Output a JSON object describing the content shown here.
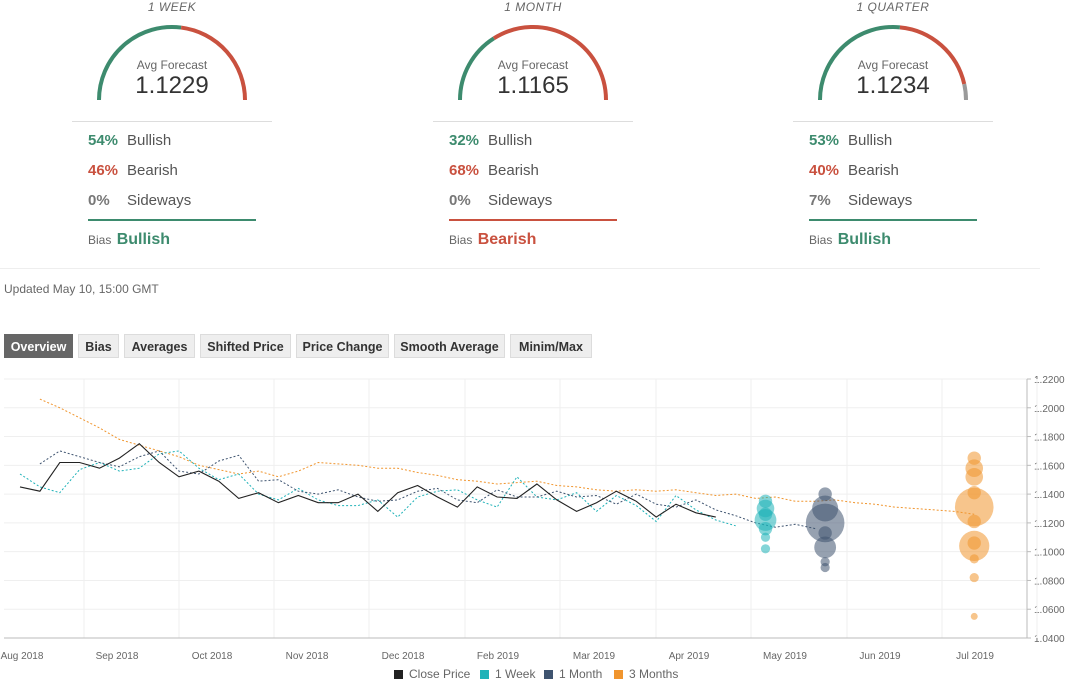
{
  "panels": [
    {
      "period": "1 WEEK",
      "avg_label": "Avg Forecast",
      "avg_value": "1.1229",
      "bullish_pct": "54%",
      "bullish_label": "Bullish",
      "bearish_pct": "46%",
      "bearish_label": "Bearish",
      "sideways_pct": "0%",
      "sideways_label": "Sideways",
      "bias_label": "Bias",
      "bias_value": "Bullish",
      "bullish": 54,
      "bearish": 46,
      "sideways": 0
    },
    {
      "period": "1 MONTH",
      "avg_label": "Avg Forecast",
      "avg_value": "1.1165",
      "bullish_pct": "32%",
      "bullish_label": "Bullish",
      "bearish_pct": "68%",
      "bearish_label": "Bearish",
      "sideways_pct": "0%",
      "sideways_label": "Sideways",
      "bias_label": "Bias",
      "bias_value": "Bearish",
      "bullish": 32,
      "bearish": 68,
      "sideways": 0
    },
    {
      "period": "1 QUARTER",
      "avg_label": "Avg Forecast",
      "avg_value": "1.1234",
      "bullish_pct": "53%",
      "bullish_label": "Bullish",
      "bearish_pct": "40%",
      "bearish_label": "Bearish",
      "sideways_pct": "7%",
      "sideways_label": "Sideways",
      "bias_label": "Bias",
      "bias_value": "Bullish",
      "bullish": 53,
      "bearish": 40,
      "sideways": 7
    }
  ],
  "colors": {
    "bullish": "#3d8b6e",
    "bearish": "#c9513f",
    "sideways": "#9a9a9a",
    "close": "#222222",
    "week": "#1fb2b8",
    "month": "#3f5470",
    "quarter": "#f0952e"
  },
  "updated": "Updated May 10, 15:00 GMT",
  "tabs": [
    "Overview",
    "Bias",
    "Averages",
    "Shifted Price",
    "Price Change",
    "Smooth Average",
    "Minim/Max"
  ],
  "active_tab": "Overview",
  "chart_data": {
    "type": "line",
    "x_ticks": [
      "Aug 2018",
      "Sep 2018",
      "Oct 2018",
      "Nov 2018",
      "Dec 2018",
      "Feb 2019",
      "Mar 2019",
      "Apr 2019",
      "May 2019",
      "Jun 2019",
      "Jul 2019"
    ],
    "y_ticks": [
      "1.0400",
      "1.0600",
      "1.0800",
      "1.1000",
      "1.1200",
      "1.1400",
      "1.1600",
      "1.1800",
      "1.2000",
      "1.2200"
    ],
    "ylim": [
      1.04,
      1.22
    ],
    "xlim": [
      0,
      50
    ],
    "grid": true,
    "legend_position": "bottom",
    "series": [
      {
        "name": "Close Price",
        "style": "solid",
        "x": [
          0,
          1,
          2,
          3,
          4,
          5,
          6,
          7,
          8,
          9,
          10,
          11,
          12,
          13,
          14,
          15,
          16,
          17,
          18,
          19,
          20,
          21,
          22,
          23,
          24,
          25,
          26,
          27,
          28,
          29,
          30,
          31,
          32,
          33,
          34,
          35
        ],
        "y": [
          1.145,
          1.142,
          1.162,
          1.162,
          1.158,
          1.165,
          1.175,
          1.162,
          1.152,
          1.156,
          1.149,
          1.137,
          1.141,
          1.134,
          1.139,
          1.134,
          1.134,
          1.14,
          1.128,
          1.141,
          1.146,
          1.138,
          1.131,
          1.145,
          1.138,
          1.137,
          1.147,
          1.136,
          1.128,
          1.134,
          1.142,
          1.135,
          1.124,
          1.133,
          1.127,
          1.124
        ]
      },
      {
        "name": "1 Week",
        "style": "dashed",
        "x": [
          0,
          1,
          2,
          3,
          4,
          5,
          6,
          7,
          8,
          9,
          10,
          11,
          12,
          13,
          14,
          15,
          16,
          17,
          18,
          19,
          20,
          21,
          22,
          23,
          24,
          25,
          26,
          27,
          28,
          29,
          30,
          31,
          32,
          33,
          34,
          35,
          36
        ],
        "y": [
          1.154,
          1.145,
          1.141,
          1.157,
          1.162,
          1.156,
          1.158,
          1.168,
          1.17,
          1.158,
          1.15,
          1.154,
          1.14,
          1.136,
          1.144,
          1.136,
          1.132,
          1.132,
          1.136,
          1.124,
          1.138,
          1.142,
          1.143,
          1.136,
          1.131,
          1.152,
          1.138,
          1.136,
          1.141,
          1.128,
          1.139,
          1.132,
          1.121,
          1.139,
          1.129,
          1.122,
          1.118
        ]
      },
      {
        "name": "1 Month",
        "style": "dashed",
        "x": [
          1,
          2,
          3,
          4,
          5,
          6,
          7,
          8,
          9,
          10,
          11,
          12,
          13,
          14,
          15,
          16,
          17,
          18,
          19,
          20,
          21,
          22,
          23,
          24,
          25,
          26,
          27,
          28,
          29,
          30,
          31,
          32,
          33,
          34,
          35,
          36,
          37,
          38,
          39,
          40
        ],
        "y": [
          1.161,
          1.17,
          1.166,
          1.162,
          1.159,
          1.166,
          1.17,
          1.156,
          1.154,
          1.163,
          1.167,
          1.149,
          1.15,
          1.142,
          1.14,
          1.143,
          1.138,
          1.135,
          1.136,
          1.142,
          1.144,
          1.136,
          1.134,
          1.143,
          1.138,
          1.138,
          1.142,
          1.138,
          1.139,
          1.133,
          1.14,
          1.133,
          1.131,
          1.136,
          1.129,
          1.125,
          1.12,
          1.117,
          1.119,
          1.116
        ]
      },
      {
        "name": "3 Months",
        "style": "dashed",
        "x": [
          1,
          2,
          3,
          4,
          5,
          6,
          7,
          8,
          9,
          10,
          11,
          12,
          13,
          14,
          15,
          16,
          17,
          18,
          19,
          20,
          21,
          22,
          23,
          24,
          25,
          26,
          27,
          28,
          29,
          30,
          31,
          32,
          33,
          34,
          35,
          36,
          37,
          38,
          39,
          40,
          41,
          42,
          43,
          44,
          45,
          46,
          47,
          48
        ],
        "y": [
          1.206,
          1.2,
          1.193,
          1.186,
          1.178,
          1.174,
          1.17,
          1.166,
          1.16,
          1.157,
          1.154,
          1.156,
          1.152,
          1.156,
          1.162,
          1.161,
          1.16,
          1.158,
          1.158,
          1.155,
          1.153,
          1.15,
          1.149,
          1.147,
          1.148,
          1.149,
          1.146,
          1.145,
          1.143,
          1.142,
          1.143,
          1.142,
          1.143,
          1.141,
          1.139,
          1.14,
          1.137,
          1.138,
          1.135,
          1.135,
          1.136,
          1.134,
          1.133,
          1.131,
          1.13,
          1.129,
          1.128,
          1.126
        ]
      }
    ],
    "forecast_bubbles": [
      {
        "name": "1 Week",
        "x": 37.5,
        "points": [
          {
            "y": 1.135,
            "size": 2
          },
          {
            "y": 1.13,
            "size": 3
          },
          {
            "y": 1.126,
            "size": 2
          },
          {
            "y": 1.122,
            "size": 4
          },
          {
            "y": 1.116,
            "size": 2
          },
          {
            "y": 1.11,
            "size": 1
          },
          {
            "y": 1.102,
            "size": 1
          }
        ]
      },
      {
        "name": "1 Month",
        "x": 40.5,
        "points": [
          {
            "y": 1.14,
            "size": 2
          },
          {
            "y": 1.13,
            "size": 5
          },
          {
            "y": 1.12,
            "size": 8
          },
          {
            "y": 1.113,
            "size": 2
          },
          {
            "y": 1.103,
            "size": 4
          },
          {
            "y": 1.093,
            "size": 1
          },
          {
            "y": 1.089,
            "size": 1
          }
        ]
      },
      {
        "name": "3 Months",
        "x": 48,
        "points": [
          {
            "y": 1.165,
            "size": 2
          },
          {
            "y": 1.158,
            "size": 3
          },
          {
            "y": 1.152,
            "size": 3
          },
          {
            "y": 1.141,
            "size": 2
          },
          {
            "y": 1.131,
            "size": 8
          },
          {
            "y": 1.121,
            "size": 2
          },
          {
            "y": 1.106,
            "size": 2
          },
          {
            "y": 1.104,
            "size": 6
          },
          {
            "y": 1.095,
            "size": 1
          },
          {
            "y": 1.082,
            "size": 1
          },
          {
            "y": 1.055,
            "size": 0.5
          }
        ]
      }
    ]
  }
}
